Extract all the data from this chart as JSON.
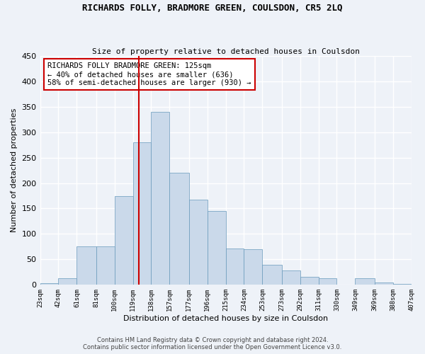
{
  "title": "RICHARDS FOLLY, BRADMORE GREEN, COULSDON, CR5 2LQ",
  "subtitle": "Size of property relative to detached houses in Coulsdon",
  "xlabel": "Distribution of detached houses by size in Coulsdon",
  "ylabel": "Number of detached properties",
  "bar_color": "#cad9ea",
  "bar_edge_color": "#6899bb",
  "background_color": "#eef2f8",
  "grid_color": "white",
  "vline_x": 125,
  "vline_color": "#cc0000",
  "bin_edges": [
    23,
    42,
    61,
    81,
    100,
    119,
    138,
    157,
    177,
    196,
    215,
    234,
    253,
    273,
    292,
    311,
    330,
    349,
    369,
    388,
    407
  ],
  "bar_heights": [
    3,
    13,
    75,
    75,
    175,
    280,
    340,
    220,
    168,
    145,
    72,
    70,
    39,
    28,
    16,
    13,
    0,
    13,
    5,
    2
  ],
  "tick_labels": [
    "23sqm",
    "42sqm",
    "61sqm",
    "81sqm",
    "100sqm",
    "119sqm",
    "138sqm",
    "157sqm",
    "177sqm",
    "196sqm",
    "215sqm",
    "234sqm",
    "253sqm",
    "273sqm",
    "292sqm",
    "311sqm",
    "330sqm",
    "349sqm",
    "369sqm",
    "388sqm",
    "407sqm"
  ],
  "ylim": [
    0,
    450
  ],
  "yticks": [
    0,
    50,
    100,
    150,
    200,
    250,
    300,
    350,
    400,
    450
  ],
  "annotation_text": "RICHARDS FOLLY BRADMORE GREEN: 125sqm\n← 40% of detached houses are smaller (636)\n58% of semi-detached houses are larger (930) →",
  "annotation_box_color": "white",
  "annotation_box_edge_color": "#cc0000",
  "footer_line1": "Contains HM Land Registry data © Crown copyright and database right 2024.",
  "footer_line2": "Contains public sector information licensed under the Open Government Licence v3.0."
}
